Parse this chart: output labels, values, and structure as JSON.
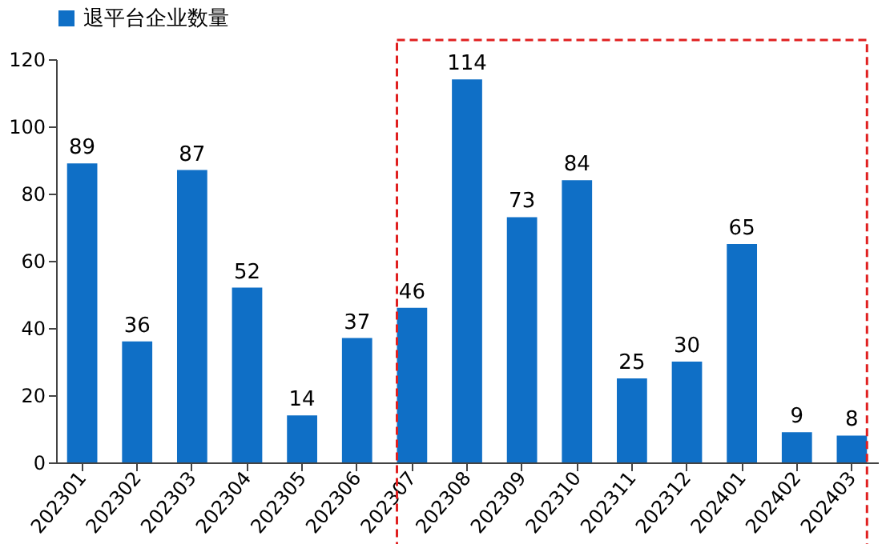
{
  "chart_data": {
    "type": "bar",
    "categories": [
      "202301",
      "202302",
      "202303",
      "202304",
      "202305",
      "202306",
      "202307",
      "202308",
      "202309",
      "202310",
      "202311",
      "202312",
      "202401",
      "202402",
      "202403"
    ],
    "series": [
      {
        "name": "退平台企业数量",
        "color": "#0f6fc6",
        "values": [
          89,
          36,
          87,
          52,
          14,
          37,
          46,
          114,
          73,
          84,
          25,
          30,
          65,
          9,
          8
        ]
      }
    ],
    "ylim": [
      0,
      120
    ],
    "yticks": [
      0,
      20,
      40,
      60,
      80,
      100,
      120
    ],
    "grid": false,
    "legend": "top",
    "data_labels": true
  }
}
